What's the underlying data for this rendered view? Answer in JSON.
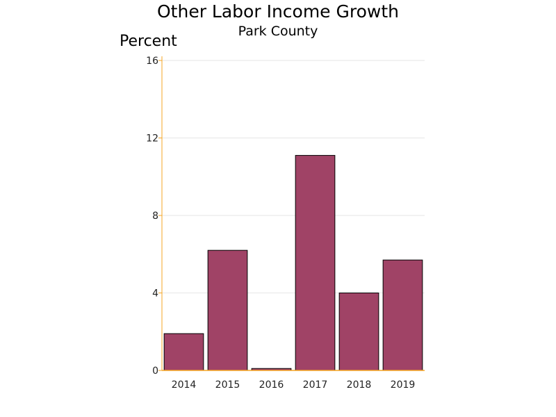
{
  "title": "Other Labor Income Growth",
  "subtitle": "Park County",
  "colors": {
    "bar_fill": "#A04366",
    "bar_stroke": "#000000",
    "axis_line": "#F5A623",
    "gridline": "#E6E6E6"
  },
  "chart_data": {
    "type": "bar",
    "title": "Other Labor Income Growth",
    "subtitle": "Park County",
    "ylabel": "Percent",
    "categories": [
      "2014",
      "2015",
      "2016",
      "2017",
      "2018",
      "2019"
    ],
    "values": [
      1.9,
      6.2,
      0.1,
      11.1,
      4.0,
      5.7
    ],
    "ylim": [
      0,
      16
    ],
    "yticks": [
      0,
      4,
      8,
      12,
      16
    ],
    "ytick_labels": [
      "0",
      "4",
      "8",
      "12",
      "16"
    ],
    "grid": true
  }
}
